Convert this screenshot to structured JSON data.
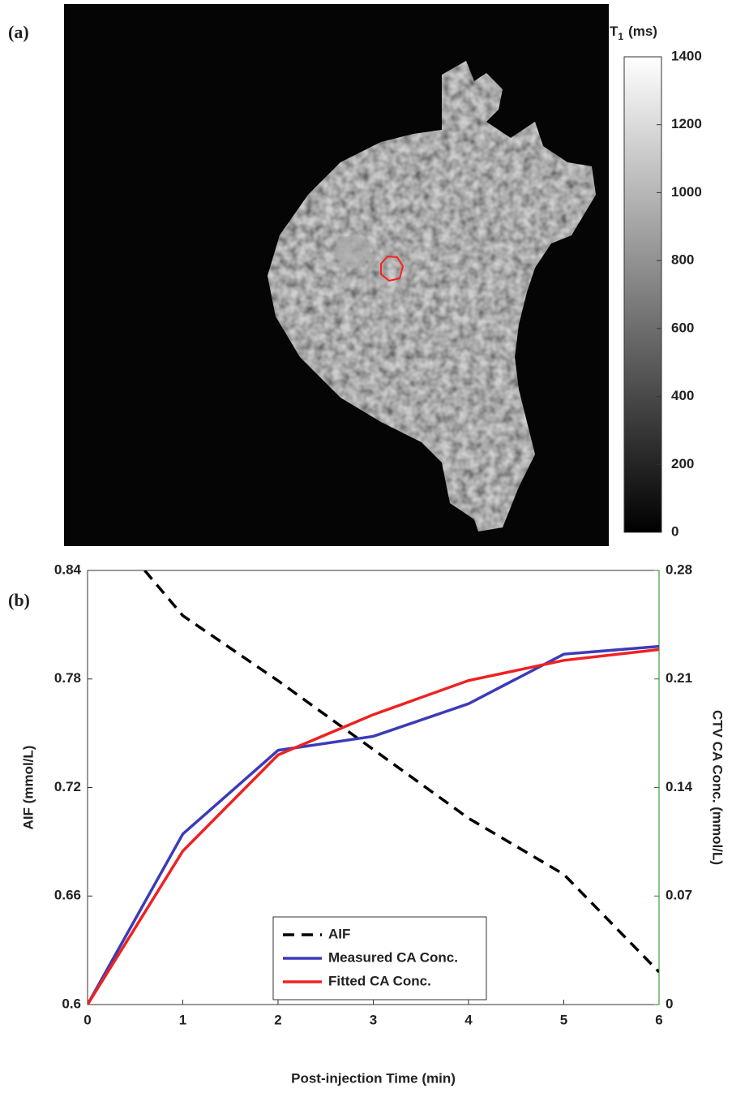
{
  "chart_data": [
    {
      "type": "image",
      "panel_label": "(a)",
      "colorbar_title": "T",
      "colorbar_title_subscript": "1",
      "colorbar_unit": "(ms)",
      "clim": [
        0,
        1400
      ],
      "cticks": [
        0,
        200,
        400,
        600,
        800,
        1000,
        1200,
        1400
      ]
    },
    {
      "type": "line",
      "panel_label": "(b)",
      "xlabel": "Post-injection Time (min)",
      "ylabel": "AIF (mmol/L)",
      "y2label": "CTV CA Conc. (mmol/L)",
      "x": [
        0,
        1,
        2,
        3,
        4,
        5,
        6
      ],
      "xlim": [
        0,
        6
      ],
      "xticks": [
        0,
        1,
        2,
        3,
        4,
        5,
        6
      ],
      "ylim": [
        0.6,
        0.84
      ],
      "yticks": [
        0.6,
        0.66,
        0.72,
        0.78,
        0.84
      ],
      "y2lim": [
        0,
        0.28
      ],
      "y2ticks": [
        0,
        0.07,
        0.14,
        0.21,
        0.28
      ],
      "y2color": "#1a8a1a",
      "series": [
        {
          "name": "AIF",
          "color": "#000000",
          "dashed": true,
          "x": [
            0.6,
            1,
            2,
            3,
            4,
            5,
            6
          ],
          "values": [
            0.84,
            0.815,
            0.779,
            0.741,
            0.703,
            0.672,
            0.618
          ]
        },
        {
          "name": "Measured CA Conc.",
          "color": "#3b3bb8",
          "axis": "y2",
          "values": [
            0,
            0.11,
            0.164,
            0.173,
            0.194,
            0.226,
            0.231
          ]
        },
        {
          "name": "Fitted CA Conc.",
          "color": "#ee2222",
          "axis": "y2",
          "values": [
            0,
            0.099,
            0.161,
            0.187,
            0.209,
            0.222,
            0.229
          ]
        }
      ]
    }
  ]
}
